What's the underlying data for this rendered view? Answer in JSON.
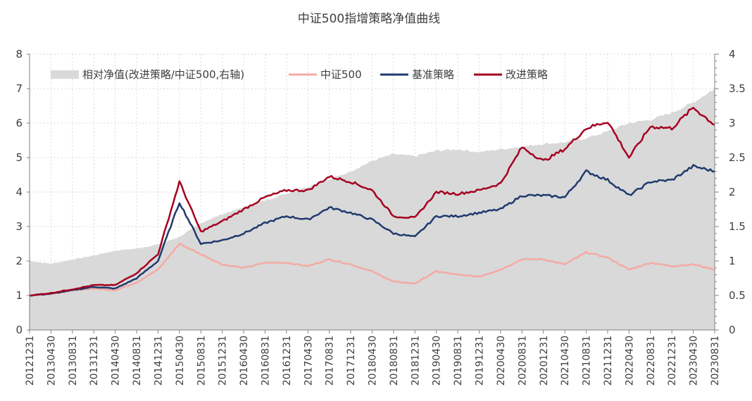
{
  "chart_data": {
    "type": "line",
    "title": "中证500指增策略净值曲线",
    "xlabel": "",
    "ylabel": "",
    "ylim": [
      0,
      8
    ],
    "y2lim": [
      0,
      4
    ],
    "y_ticks": [
      0,
      1,
      2,
      3,
      4,
      5,
      6,
      7,
      8
    ],
    "y2_ticks": [
      "0",
      "0.5",
      "1",
      "1.5",
      "2",
      "2.5",
      "3",
      "3.5",
      "4"
    ],
    "grid": true,
    "legend_position": "top-left",
    "categories": [
      "20121231",
      "20130430",
      "20130831",
      "20131231",
      "20140430",
      "20140831",
      "20141231",
      "20150430",
      "20150831",
      "20151231",
      "20160430",
      "20160831",
      "20161231",
      "20170430",
      "20170831",
      "20171231",
      "20180430",
      "20180831",
      "20181231",
      "20190430",
      "20190831",
      "20191231",
      "20200430",
      "20200831",
      "20201231",
      "20210430",
      "20210831",
      "20211231",
      "20220430",
      "20220831",
      "20221231",
      "20230430",
      "20230831"
    ],
    "series": [
      {
        "name": "相对净值(改进策略/中证500,右轴)",
        "type": "area",
        "axis": "right",
        "color": "#d9d9d9",
        "values": [
          1.0,
          0.96,
          1.02,
          1.08,
          1.15,
          1.18,
          1.24,
          1.35,
          1.55,
          1.68,
          1.78,
          1.88,
          1.98,
          2.08,
          2.18,
          2.3,
          2.45,
          2.55,
          2.52,
          2.6,
          2.62,
          2.58,
          2.62,
          2.66,
          2.7,
          2.72,
          2.78,
          2.88,
          3.0,
          3.05,
          3.15,
          3.3,
          3.5
        ]
      },
      {
        "name": "中证500",
        "type": "line",
        "axis": "left",
        "color": "#f4aaa4",
        "values": [
          1.0,
          1.05,
          1.15,
          1.2,
          1.15,
          1.38,
          1.75,
          2.5,
          2.2,
          1.9,
          1.8,
          1.95,
          1.95,
          1.85,
          2.05,
          1.9,
          1.7,
          1.4,
          1.35,
          1.7,
          1.6,
          1.55,
          1.75,
          2.05,
          2.05,
          1.9,
          2.25,
          2.1,
          1.75,
          1.95,
          1.85,
          1.9,
          1.75
        ]
      },
      {
        "name": "基准策略",
        "type": "line",
        "axis": "left",
        "color": "#1f3a6e",
        "values": [
          1.0,
          1.05,
          1.15,
          1.25,
          1.2,
          1.5,
          2.0,
          3.7,
          2.5,
          2.6,
          2.8,
          3.1,
          3.3,
          3.2,
          3.55,
          3.4,
          3.2,
          2.8,
          2.7,
          3.3,
          3.3,
          3.4,
          3.5,
          3.9,
          3.9,
          3.85,
          4.6,
          4.35,
          3.9,
          4.3,
          4.35,
          4.75,
          4.6
        ]
      },
      {
        "name": "改进策略",
        "type": "line",
        "axis": "left",
        "color": "#a50021",
        "values": [
          1.0,
          1.07,
          1.18,
          1.3,
          1.3,
          1.65,
          2.2,
          4.3,
          2.85,
          3.15,
          3.5,
          3.85,
          4.05,
          4.05,
          4.45,
          4.3,
          4.05,
          3.3,
          3.25,
          4.0,
          3.95,
          4.05,
          4.25,
          5.3,
          4.9,
          5.25,
          5.85,
          6.05,
          5.0,
          5.9,
          5.85,
          6.45,
          5.95
        ]
      }
    ]
  }
}
